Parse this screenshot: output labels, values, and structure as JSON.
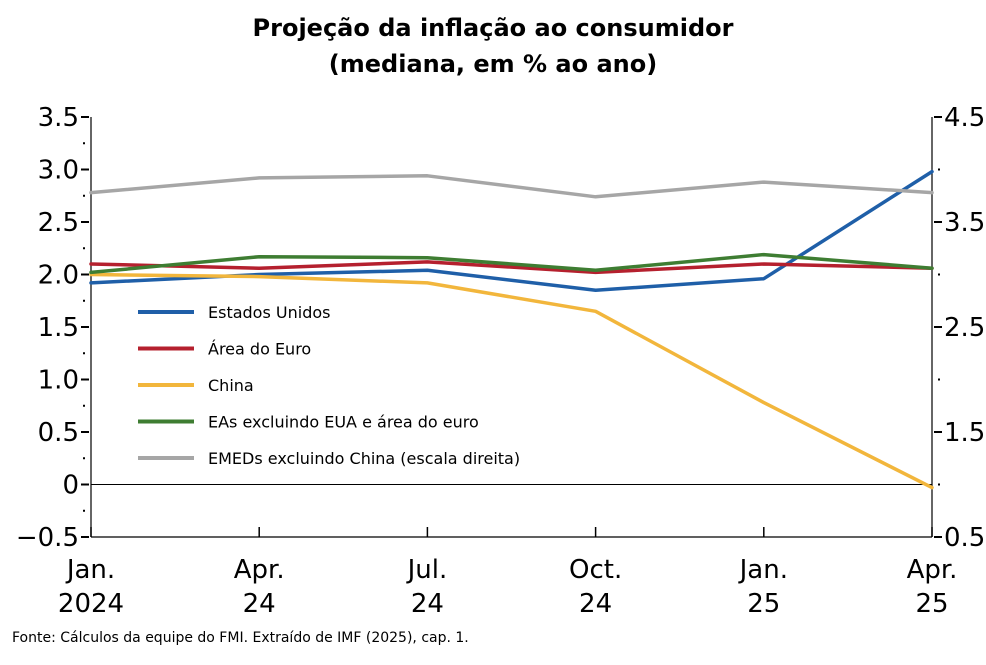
{
  "chart_data": {
    "type": "line",
    "title": "Projeção da inflação ao consumidor",
    "subtitle": "(mediana, em % ao ano)",
    "x_labels": [
      {
        "line1": "Jan.",
        "line2": "2024"
      },
      {
        "line1": "Apr.",
        "line2": "24"
      },
      {
        "line1": "Jul.",
        "line2": "24"
      },
      {
        "line1": "Oct.",
        "line2": "24"
      },
      {
        "line1": "Jan.",
        "line2": "25"
      },
      {
        "line1": "Apr.",
        "line2": "25"
      }
    ],
    "y_left": {
      "min": -0.5,
      "max": 3.5,
      "ticks": [
        "3.5",
        "3.0",
        "2.5",
        "2.0",
        "1.5",
        "1.0",
        "0.5",
        "0",
        "−0.5"
      ]
    },
    "y_right": {
      "min": 0.5,
      "max": 4.5,
      "ticks": [
        "4.5",
        "3.5",
        "2.5",
        "1.5",
        "0.5"
      ]
    },
    "grid": false,
    "zero_line": true,
    "legend_position": "center-left",
    "series": [
      {
        "name": "Estados Unidos",
        "color": "#1f5fa8",
        "axis": "left",
        "values": [
          1.92,
          2.0,
          2.04,
          1.85,
          1.96,
          2.98
        ]
      },
      {
        "name": "Área do Euro",
        "color": "#b5202e",
        "axis": "left",
        "values": [
          2.1,
          2.06,
          2.12,
          2.02,
          2.1,
          2.06
        ]
      },
      {
        "name": "China",
        "color": "#f2b63c",
        "axis": "left",
        "values": [
          2.0,
          1.98,
          1.92,
          1.65,
          0.78,
          -0.03
        ]
      },
      {
        "name": "EAs excluindo EUA e área do euro",
        "color": "#3e7d32",
        "axis": "left",
        "values": [
          2.02,
          2.17,
          2.16,
          2.04,
          2.19,
          2.06
        ]
      },
      {
        "name": "EMEDs excluindo China (escala direita)",
        "color": "#a6a6a6",
        "axis": "right",
        "values": [
          3.78,
          3.92,
          3.94,
          3.74,
          3.88,
          3.78
        ]
      }
    ]
  },
  "source": "Fonte: Cálculos da equipe do FMI. Extraído de IMF (2025), cap. 1."
}
